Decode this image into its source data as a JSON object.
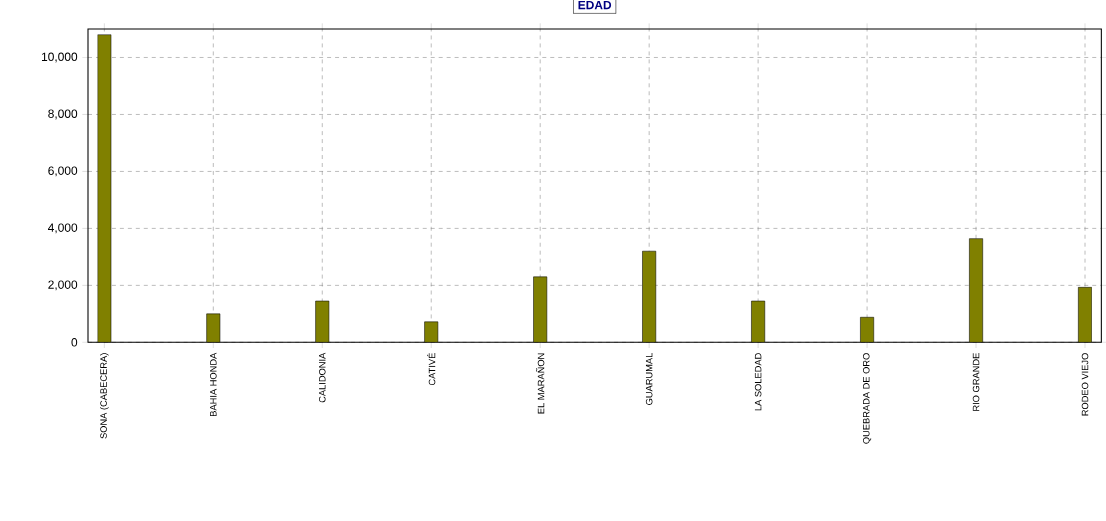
{
  "chart_data": {
    "type": "bar",
    "title": "EDAD",
    "categories": [
      "SONA (CABECERA)",
      "BAHIA HONDA",
      "CALIDONIA",
      "CATIVÉ",
      "EL MARAÑON",
      "GUARUMAL",
      "LA SOLEDAD",
      "QUEBRADA DE ORO",
      "RIO GRANDE",
      "RODEO VIEJO"
    ],
    "values": [
      10800,
      1000,
      1450,
      720,
      2300,
      3200,
      1450,
      880,
      3640,
      1930
    ],
    "color": "#808000",
    "ylim": [
      0,
      11000
    ],
    "yticks": [
      0,
      {
        "value": 2000,
        "label": "2,000"
      },
      {
        "value": 4000,
        "label": "4,000"
      },
      {
        "value": 6000,
        "label": "6,000"
      },
      {
        "value": 8000,
        "label": "8,000"
      },
      {
        "value": 10000,
        "label": "10,000"
      }
    ],
    "grid": true
  }
}
